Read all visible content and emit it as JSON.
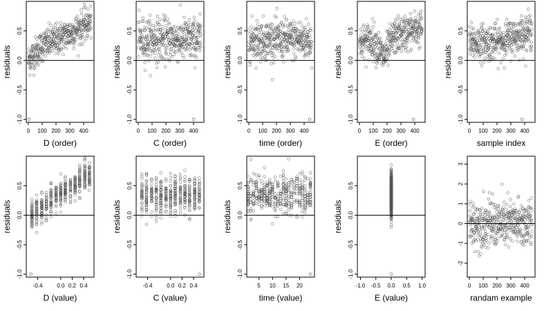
{
  "chart_data": [
    {
      "type": "scatter",
      "xlabel": "D (order)",
      "ylabel": "residuals",
      "xlim": [
        -15,
        475
      ],
      "ylim": [
        -1.05,
        1.0
      ],
      "xticks": [
        0,
        100,
        200,
        300,
        400
      ],
      "yticks": [
        -1.0,
        -0.5,
        0.0,
        0.5
      ],
      "ytick_labels": [
        "-1.0",
        "-0.5",
        "0.0",
        "0.5"
      ],
      "reference_line_y": 0,
      "points_description": "~450 open circles; residuals rise with index from about 0.0 near x=0 to about 0.65 near x=450; outlier near (0, -1.0)",
      "trend": {
        "x": [
          0,
          100,
          200,
          300,
          450
        ],
        "y": [
          0.0,
          0.25,
          0.35,
          0.45,
          0.65
        ]
      },
      "spread": 0.22,
      "outliers": [
        {
          "x": 5,
          "y": -1.0
        }
      ]
    },
    {
      "type": "scatter",
      "xlabel": "C (order)",
      "ylabel": "residuals",
      "xlim": [
        -15,
        475
      ],
      "ylim": [
        -1.05,
        1.0
      ],
      "xticks": [
        0,
        100,
        200,
        300,
        400
      ],
      "yticks": [
        -1.0,
        -0.5,
        0.0,
        0.5
      ],
      "ytick_labels": [
        "-1.0",
        "-0.5",
        "0.0",
        "0.5"
      ],
      "reference_line_y": 0,
      "points_description": "~450 open circles scattered around 0.35 with no trend",
      "trend": {
        "x": [
          0,
          450
        ],
        "y": [
          0.35,
          0.35
        ]
      },
      "spread": 0.3,
      "outliers": [
        {
          "x": 400,
          "y": -1.0
        }
      ]
    },
    {
      "type": "scatter",
      "xlabel": "time (order)",
      "ylabel": "residuals",
      "xlim": [
        -15,
        475
      ],
      "ylim": [
        -1.05,
        1.0
      ],
      "xticks": [
        0,
        100,
        200,
        300,
        400
      ],
      "yticks": [
        -1.0,
        -0.5,
        0.0,
        0.5
      ],
      "ytick_labels": [
        "-1.0",
        "-0.5",
        "0.0",
        "0.5"
      ],
      "reference_line_y": 0,
      "points_description": "~450 open circles scattered around 0.35 with no trend",
      "trend": {
        "x": [
          0,
          450
        ],
        "y": [
          0.35,
          0.35
        ]
      },
      "spread": 0.28,
      "outliers": [
        {
          "x": 440,
          "y": -1.0
        }
      ]
    },
    {
      "type": "scatter",
      "xlabel": "E (order)",
      "ylabel": "residuals",
      "xlim": [
        -15,
        475
      ],
      "ylim": [
        -1.05,
        1.0
      ],
      "xticks": [
        0,
        100,
        200,
        300,
        400
      ],
      "yticks": [
        -1.0,
        -0.5,
        0.0,
        0.5
      ],
      "ytick_labels": [
        "-1.0",
        "-0.5",
        "0.0",
        "0.5"
      ],
      "reference_line_y": 0,
      "points_description": "~450 open circles rising from about 0.3 to about 0.55 with a dip near x=150-200",
      "trend": {
        "x": [
          0,
          100,
          175,
          250,
          450
        ],
        "y": [
          0.3,
          0.35,
          0.05,
          0.4,
          0.55
        ]
      },
      "spread": 0.25,
      "outliers": [
        {
          "x": 390,
          "y": -1.0
        }
      ]
    },
    {
      "type": "scatter",
      "xlabel": "sample index",
      "ylabel": "residuals",
      "xlim": [
        -15,
        475
      ],
      "ylim": [
        -1.05,
        1.0
      ],
      "xticks": [
        0,
        100,
        200,
        300,
        400
      ],
      "yticks": [
        -1.0,
        -0.5,
        0.0,
        0.5
      ],
      "ytick_labels": [
        "-1.0",
        "-0.5",
        "0.0",
        "0.5"
      ],
      "reference_line_y": 0,
      "points_description": "~450 open circles rising gently from about 0.3 to about 0.5",
      "trend": {
        "x": [
          0,
          200,
          450
        ],
        "y": [
          0.3,
          0.3,
          0.5
        ]
      },
      "spread": 0.25,
      "outliers": [
        {
          "x": 380,
          "y": -1.0
        }
      ]
    },
    {
      "type": "scatter",
      "xlabel": "D (value)",
      "ylabel": "residuals",
      "xlim": [
        -0.6,
        0.58
      ],
      "ylim": [
        -1.05,
        1.0
      ],
      "xticks": [
        -0.4,
        0.0,
        0.2,
        0.4
      ],
      "xtick_labels": [
        "-0.4",
        "0.0",
        "0.2",
        "0.4"
      ],
      "yticks": [
        -1.0,
        -0.5,
        0.0,
        0.5
      ],
      "ytick_labels": [
        "-1.0",
        "-0.5",
        "0.0",
        "0.5"
      ],
      "reference_line_y": 0,
      "points_description": "~450 open circles in vertical clusters; strong positive linear relation from about 0.0 at x=-0.5 to about 0.7 at x=0.5",
      "trend": {
        "x": [
          -0.5,
          0.5
        ],
        "y": [
          0.0,
          0.7
        ]
      },
      "spread": 0.2,
      "x_clusters": [
        -0.5,
        -0.42,
        -0.33,
        -0.25,
        -0.17,
        -0.08,
        0.0,
        0.08,
        0.17,
        0.25,
        0.33,
        0.42,
        0.5
      ],
      "outliers": [
        {
          "x": -0.52,
          "y": -1.0
        }
      ]
    },
    {
      "type": "scatter",
      "xlabel": "C (value)",
      "ylabel": "residuals",
      "xlim": [
        -0.6,
        0.58
      ],
      "ylim": [
        -1.05,
        1.0
      ],
      "xticks": [
        -0.4,
        0.0,
        0.2,
        0.4
      ],
      "xtick_labels": [
        "-0.4",
        "0.0",
        "0.2",
        "0.4"
      ],
      "yticks": [
        -1.0,
        -0.5,
        0.0,
        0.5
      ],
      "ytick_labels": [
        "-1.0",
        "-0.5",
        "0.0",
        "0.5"
      ],
      "reference_line_y": 0,
      "points_description": "~450 open circles in vertical clusters centred around 0.35, no trend",
      "trend": {
        "x": [
          -0.5,
          0.5
        ],
        "y": [
          0.35,
          0.35
        ]
      },
      "spread": 0.28,
      "x_clusters": [
        -0.5,
        -0.42,
        -0.33,
        -0.25,
        -0.17,
        -0.08,
        0.0,
        0.08,
        0.17,
        0.25,
        0.33,
        0.42,
        0.5
      ],
      "outliers": [
        {
          "x": 0.5,
          "y": -1.0
        }
      ]
    },
    {
      "type": "scatter",
      "xlabel": "time (value)",
      "ylabel": "residuals",
      "xlim": [
        0.5,
        25.5
      ],
      "ylim": [
        -1.05,
        1.0
      ],
      "xticks": [
        5,
        10,
        15,
        20
      ],
      "yticks": [
        -1.0,
        -0.5,
        0.0,
        0.5
      ],
      "ytick_labels": [
        "-1.0",
        "-0.5",
        "0.0",
        "0.5"
      ],
      "reference_line_y": 0,
      "points_description": "~450 open circles in vertical clusters at integer times 1 to 24 centred around 0.35, no trend",
      "trend": {
        "x": [
          1,
          24
        ],
        "y": [
          0.35,
          0.35
        ]
      },
      "spread": 0.28,
      "x_clusters": [
        1,
        2,
        3,
        4,
        5,
        6,
        7,
        8,
        9,
        10,
        11,
        12,
        13,
        14,
        15,
        16,
        17,
        18,
        19,
        20,
        21,
        22,
        23,
        24
      ],
      "outliers": [
        {
          "x": 24,
          "y": -1.0
        }
      ]
    },
    {
      "type": "scatter",
      "xlabel": "E (value)",
      "ylabel": "residuals",
      "xlim": [
        -1.1,
        1.1
      ],
      "ylim": [
        -1.05,
        1.0
      ],
      "xticks": [
        -1.0,
        -0.5,
        0.0,
        0.5,
        1.0
      ],
      "xtick_labels": [
        "-1.0",
        "-0.5",
        "0.0",
        "0.5",
        "1.0"
      ],
      "yticks": [
        -1.0,
        -0.5,
        0.0,
        0.5
      ],
      "ytick_labels": [
        "-1.0",
        "-0.5",
        "0.0",
        "0.5"
      ],
      "reference_line_y": 0,
      "points_description": "all points stacked at x=0 spanning residuals from about -0.45 to 0.9, outlier at -1.0",
      "trend": {
        "x": [
          0,
          0
        ],
        "y": [
          0.35,
          0.35
        ]
      },
      "spread": 0.3,
      "x_clusters": [
        0
      ],
      "outliers": [
        {
          "x": 0,
          "y": -1.0
        }
      ]
    },
    {
      "type": "scatter",
      "xlabel": "randam example",
      "ylabel": "",
      "xlim": [
        -15,
        475
      ],
      "ylim": [
        -2.7,
        3.4
      ],
      "xticks": [
        0,
        100,
        200,
        300,
        400
      ],
      "yticks": [
        -2,
        -1,
        0,
        1,
        2,
        3
      ],
      "ytick_labels": [
        "-2",
        "-1",
        "0",
        "1",
        "2",
        "3"
      ],
      "reference_line_y": 0,
      "points_description": "~450 open circles of random noise centred at 0 with spread about 1",
      "trend": {
        "x": [
          0,
          450
        ],
        "y": [
          0.0,
          0.0
        ]
      },
      "spread": 1.0,
      "outliers": []
    }
  ]
}
